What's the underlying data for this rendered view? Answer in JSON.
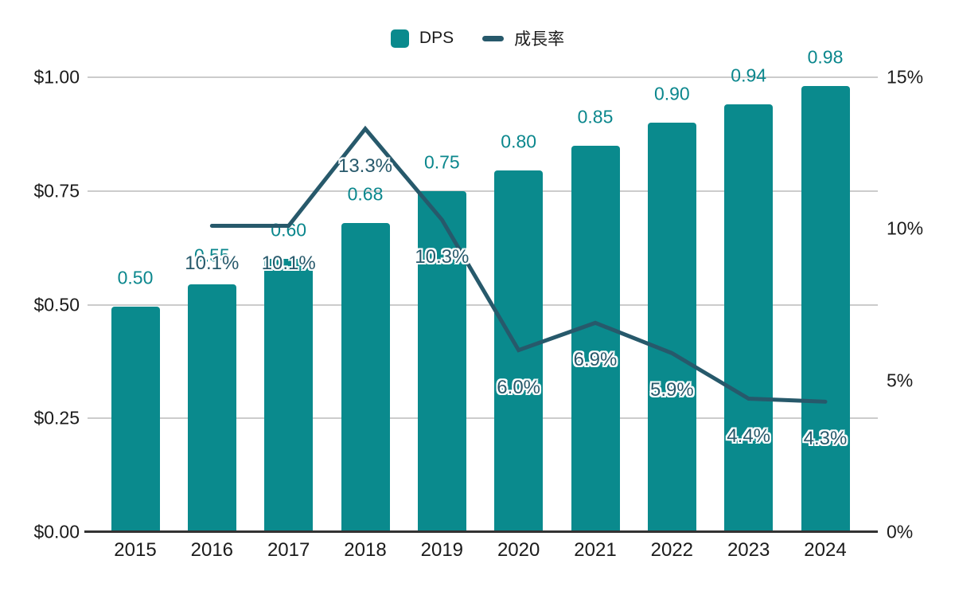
{
  "legend": {
    "items": [
      {
        "label": "DPS",
        "swatch": "bar-swatch"
      },
      {
        "label": "成長率",
        "swatch": "line-swatch"
      }
    ]
  },
  "colors": {
    "bar": "#0a8a8d",
    "bar_label": "#0b878d",
    "line": "#27596b",
    "line_label": "#27596b",
    "grid": "#cccccc",
    "axis": "#333333",
    "text": "#1b1b1b"
  },
  "chart_data": {
    "type": "bar+line combo (dual axis)",
    "title": "",
    "categories": [
      "2015",
      "2016",
      "2017",
      "2018",
      "2019",
      "2020",
      "2021",
      "2022",
      "2023",
      "2024"
    ],
    "series": [
      {
        "name": "DPS",
        "type": "bar",
        "axis": "left",
        "values": [
          0.495,
          0.545,
          0.6,
          0.68,
          0.75,
          0.795,
          0.85,
          0.9,
          0.94,
          0.98
        ],
        "labels": [
          "0.50",
          "0.55",
          "0.60",
          "0.68",
          "0.75",
          "0.80",
          "0.85",
          "0.90",
          "0.94",
          "0.98"
        ]
      },
      {
        "name": "成長率",
        "type": "line",
        "axis": "right",
        "values": [
          null,
          10.1,
          10.1,
          13.3,
          10.3,
          6.0,
          6.9,
          5.9,
          4.4,
          4.3
        ],
        "labels": [
          null,
          "10.1%",
          "10.1%",
          "13.3%",
          "10.3%",
          "6.0%",
          "6.9%",
          "5.9%",
          "4.4%",
          "4.3%"
        ]
      }
    ],
    "left_axis": {
      "range": [
        0,
        1.0
      ],
      "ticks": [
        {
          "v": 0,
          "label": "$0.00"
        },
        {
          "v": 0.25,
          "label": "$0.25"
        },
        {
          "v": 0.5,
          "label": "$0.50"
        },
        {
          "v": 0.75,
          "label": "$0.75"
        },
        {
          "v": 1.0,
          "label": "$1.00"
        }
      ]
    },
    "right_axis": {
      "range": [
        0,
        15
      ],
      "ticks": [
        {
          "v": 0,
          "label": "0%"
        },
        {
          "v": 5,
          "label": "5%"
        },
        {
          "v": 10,
          "label": "10%"
        },
        {
          "v": 15,
          "label": "15%"
        }
      ]
    },
    "grid": "horizontal gridlines at left-axis ticks",
    "legend_position": "top-center"
  }
}
